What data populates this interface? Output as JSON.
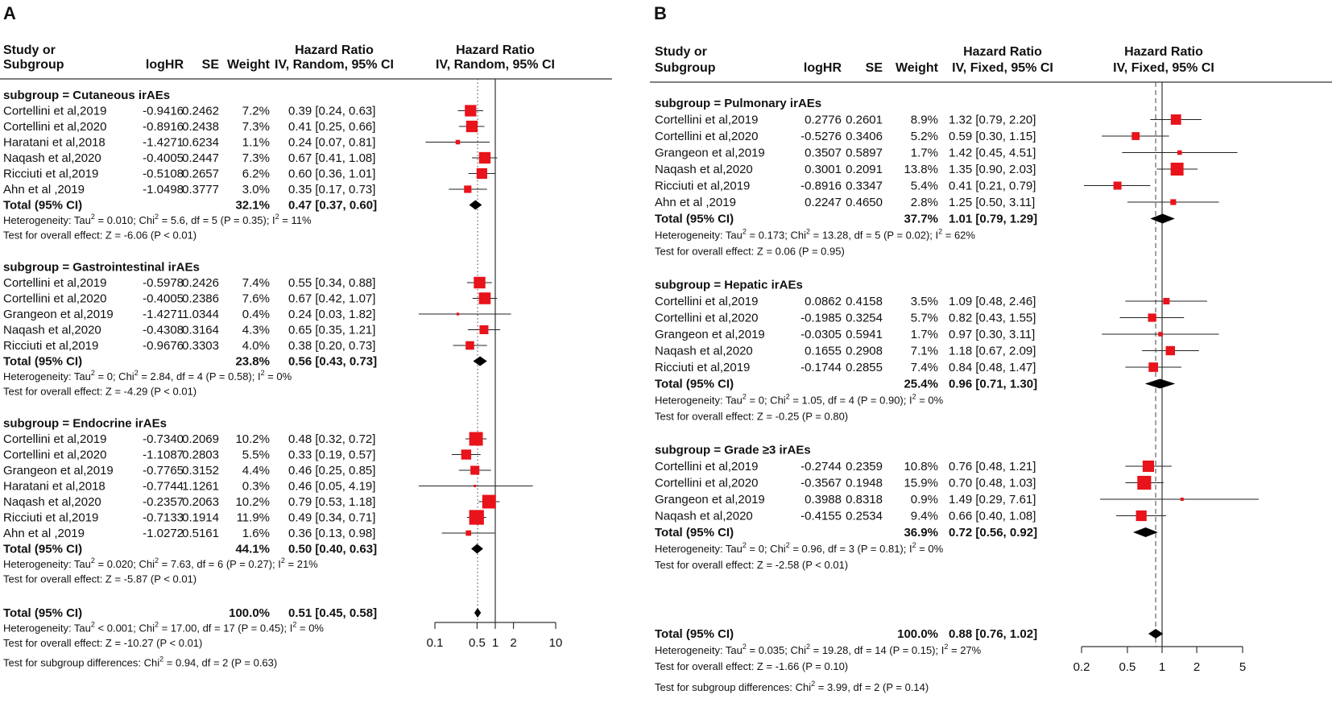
{
  "chart_data": [
    {
      "type": "forest",
      "panel": "A",
      "headers": {
        "study_line1": "Study or",
        "study_line2": "Subgroup",
        "loghr": "logHR",
        "se": "SE",
        "weight": "Weight",
        "ci_line1": "Hazard Ratio",
        "ci_line2": "IV, Random, 95% CI",
        "plot_line1": "Hazard Ratio",
        "plot_line2": "IV, Random, 95% CI"
      },
      "axis": {
        "ticks": [
          0.1,
          0.5,
          1,
          2,
          10
        ],
        "tick_labels": [
          "0.1",
          "0.5",
          "1",
          "2",
          "10"
        ],
        "xlim": [
          0.1,
          10
        ],
        "scale": "log",
        "overall_dotted_line": 0.51
      },
      "subgroups": [
        {
          "title": "subgroup = Cutaneous irAEs",
          "studies": [
            {
              "study": "Cortellini et al,2019",
              "loghr": "-0.9416",
              "se": "0.2462",
              "weight": "7.2%",
              "ci": "0.39 [0.24, 0.63]",
              "hr": 0.39,
              "lo": 0.24,
              "hi": 0.63,
              "w": 7.2
            },
            {
              "study": "Cortellini et al,2020",
              "loghr": "-0.8916",
              "se": "0.2438",
              "weight": "7.3%",
              "ci": "0.41 [0.25, 0.66]",
              "hr": 0.41,
              "lo": 0.25,
              "hi": 0.66,
              "w": 7.3
            },
            {
              "study": "Haratani et al,2018",
              "loghr": "-1.4271",
              "se": "0.6234",
              "weight": "1.1%",
              "ci": "0.24 [0.07, 0.81]",
              "hr": 0.24,
              "lo": 0.07,
              "hi": 0.81,
              "w": 1.1
            },
            {
              "study": "Naqash et al,2020",
              "loghr": "-0.4005",
              "se": "0.2447",
              "weight": "7.3%",
              "ci": "0.67 [0.41, 1.08]",
              "hr": 0.67,
              "lo": 0.41,
              "hi": 1.08,
              "w": 7.3
            },
            {
              "study": "Ricciuti et al,2019",
              "loghr": "-0.5108",
              "se": "0.2657",
              "weight": "6.2%",
              "ci": "0.60 [0.36, 1.01]",
              "hr": 0.6,
              "lo": 0.36,
              "hi": 1.01,
              "w": 6.2
            },
            {
              "study": "Ahn et al ,2019",
              "loghr": "-1.0498",
              "se": "0.3777",
              "weight": "3.0%",
              "ci": "0.35 [0.17, 0.73]",
              "hr": 0.35,
              "lo": 0.17,
              "hi": 0.73,
              "w": 3.0
            }
          ],
          "total": {
            "label": "Total (95% CI)",
            "weight": "32.1%",
            "ci": "0.47 [0.37, 0.60]",
            "hr": 0.47,
            "lo": 0.37,
            "hi": 0.6
          },
          "heterogeneity": {
            "prefix": "Heterogeneity: Tau",
            "mid": " = 0.010; Chi",
            "suffix1": " = 5.6, df = 5 (P = 0.35); I",
            "suffix2": " = 11%"
          },
          "effect": "Test for overall effect: Z = -6.06 (P < 0.01)"
        },
        {
          "title": "subgroup = Gastrointestinal irAEs",
          "studies": [
            {
              "study": "Cortellini et al,2019",
              "loghr": "-0.5978",
              "se": "0.2426",
              "weight": "7.4%",
              "ci": "0.55 [0.34, 0.88]",
              "hr": 0.55,
              "lo": 0.34,
              "hi": 0.88,
              "w": 7.4
            },
            {
              "study": "Cortellini et al,2020",
              "loghr": "-0.4005",
              "se": "0.2386",
              "weight": "7.6%",
              "ci": "0.67 [0.42, 1.07]",
              "hr": 0.67,
              "lo": 0.42,
              "hi": 1.07,
              "w": 7.6
            },
            {
              "study": "Grangeon et al,2019",
              "loghr": "-1.4271",
              "se": "1.0344",
              "weight": "0.4%",
              "ci": "0.24 [0.03, 1.82]",
              "hr": 0.24,
              "lo": 0.03,
              "hi": 1.82,
              "w": 0.4
            },
            {
              "study": "Naqash et al,2020",
              "loghr": "-0.4308",
              "se": "0.3164",
              "weight": "4.3%",
              "ci": "0.65 [0.35, 1.21]",
              "hr": 0.65,
              "lo": 0.35,
              "hi": 1.21,
              "w": 4.3
            },
            {
              "study": "Ricciuti et al,2019",
              "loghr": "-0.9676",
              "se": "0.3303",
              "weight": "4.0%",
              "ci": "0.38 [0.20, 0.73]",
              "hr": 0.38,
              "lo": 0.2,
              "hi": 0.73,
              "w": 4.0
            }
          ],
          "total": {
            "label": "Total (95% CI)",
            "weight": "23.8%",
            "ci": "0.56 [0.43, 0.73]",
            "hr": 0.56,
            "lo": 0.43,
            "hi": 0.73
          },
          "heterogeneity": {
            "prefix": "Heterogeneity: Tau",
            "mid": " = 0; Chi",
            "suffix1": " = 2.84, df = 4 (P = 0.58); I",
            "suffix2": " = 0%"
          },
          "effect": "Test for overall effect: Z = -4.29 (P < 0.01)"
        },
        {
          "title": "subgroup = Endocrine irAEs",
          "studies": [
            {
              "study": "Cortellini et al,2019",
              "loghr": "-0.7340",
              "se": "0.2069",
              "weight": "10.2%",
              "ci": "0.48 [0.32, 0.72]",
              "hr": 0.48,
              "lo": 0.32,
              "hi": 0.72,
              "w": 10.2
            },
            {
              "study": "Cortellini et al,2020",
              "loghr": "-1.1087",
              "se": "0.2803",
              "weight": "5.5%",
              "ci": "0.33 [0.19, 0.57]",
              "hr": 0.33,
              "lo": 0.19,
              "hi": 0.57,
              "w": 5.5
            },
            {
              "study": "Grangeon et al,2019",
              "loghr": "-0.7765",
              "se": "0.3152",
              "weight": "4.4%",
              "ci": "0.46 [0.25, 0.85]",
              "hr": 0.46,
              "lo": 0.25,
              "hi": 0.85,
              "w": 4.4
            },
            {
              "study": "Haratani et al,2018",
              "loghr": "-0.7744",
              "se": "1.1261",
              "weight": "0.3%",
              "ci": "0.46 [0.05, 4.19]",
              "hr": 0.46,
              "lo": 0.05,
              "hi": 4.19,
              "w": 0.3
            },
            {
              "study": "Naqash et al,2020",
              "loghr": "-0.2357",
              "se": "0.2063",
              "weight": "10.2%",
              "ci": "0.79 [0.53, 1.18]",
              "hr": 0.79,
              "lo": 0.53,
              "hi": 1.18,
              "w": 10.2
            },
            {
              "study": "Ricciuti et al,2019",
              "loghr": "-0.7133",
              "se": "0.1914",
              "weight": "11.9%",
              "ci": "0.49 [0.34, 0.71]",
              "hr": 0.49,
              "lo": 0.34,
              "hi": 0.71,
              "w": 11.9
            },
            {
              "study": "Ahn et al ,2019",
              "loghr": "-1.0272",
              "se": "0.5161",
              "weight": "1.6%",
              "ci": "0.36 [0.13, 0.98]",
              "hr": 0.36,
              "lo": 0.13,
              "hi": 0.98,
              "w": 1.6
            }
          ],
          "total": {
            "label": "Total (95% CI)",
            "weight": "44.1%",
            "ci": "0.50 [0.40, 0.63]",
            "hr": 0.5,
            "lo": 0.4,
            "hi": 0.63
          },
          "heterogeneity": {
            "prefix": "Heterogeneity: Tau",
            "mid": " = 0.020; Chi",
            "suffix1": " = 7.63, df = 6 (P = 0.27); I",
            "suffix2": " = 21%"
          },
          "effect": "Test for overall effect: Z = -5.87 (P < 0.01)"
        }
      ],
      "overall": {
        "label": "Total (95% CI)",
        "weight": "100.0%",
        "ci": "0.51 [0.45, 0.58]",
        "hr": 0.51,
        "lo": 0.45,
        "hi": 0.58,
        "heterogeneity": {
          "prefix": "Heterogeneity: Tau",
          "mid": " < 0.001; Chi",
          "suffix1": " = 17.00, df = 17 (P = 0.45); I",
          "suffix2": " = 0%"
        },
        "effect": "Test for overall effect: Z = -10.27 (P < 0.01)",
        "subgroup_diff": {
          "prefix": "Test for subgroup differences: Chi",
          "suffix": " = 0.94, df = 2 (P = 0.63)"
        }
      }
    },
    {
      "type": "forest",
      "panel": "B",
      "headers": {
        "study_line1": "Study or",
        "study_line2": "Subgroup",
        "loghr": "logHR",
        "se": "SE",
        "weight": "Weight",
        "ci_line1": "Hazard Ratio",
        "ci_line2": "IV, Fixed, 95% CI",
        "plot_line1": "Hazard Ratio",
        "plot_line2": "IV, Fixed, 95% CI"
      },
      "axis": {
        "ticks": [
          0.2,
          0.5,
          1,
          2,
          5
        ],
        "tick_labels": [
          "0.2",
          "0.5",
          "1",
          "2",
          "5"
        ],
        "xlim": [
          0.2,
          5
        ],
        "scale": "log",
        "overall_dashed_line": 0.88
      },
      "subgroups": [
        {
          "title": "subgroup = Pulmonary irAEs",
          "studies": [
            {
              "study": "Cortellini et al,2019",
              "loghr": "0.2776",
              "se": "0.2601",
              "weight": "8.9%",
              "ci": "1.32 [0.79, 2.20]",
              "hr": 1.32,
              "lo": 0.79,
              "hi": 2.2,
              "w": 8.9
            },
            {
              "study": "Cortellini et al,2020",
              "loghr": "-0.5276",
              "se": "0.3406",
              "weight": "5.2%",
              "ci": "0.59 [0.30, 1.15]",
              "hr": 0.59,
              "lo": 0.3,
              "hi": 1.15,
              "w": 5.2
            },
            {
              "study": "Grangeon et al,2019",
              "loghr": "0.3507",
              "se": "0.5897",
              "weight": "1.7%",
              "ci": "1.42 [0.45, 4.51]",
              "hr": 1.42,
              "lo": 0.45,
              "hi": 4.51,
              "w": 1.7
            },
            {
              "study": "Naqash et al,2020",
              "loghr": "0.3001",
              "se": "0.2091",
              "weight": "13.8%",
              "ci": "1.35 [0.90, 2.03]",
              "hr": 1.35,
              "lo": 0.9,
              "hi": 2.03,
              "w": 13.8
            },
            {
              "study": "Ricciuti et al,2019",
              "loghr": "-0.8916",
              "se": "0.3347",
              "weight": "5.4%",
              "ci": "0.41 [0.21, 0.79]",
              "hr": 0.41,
              "lo": 0.21,
              "hi": 0.79,
              "w": 5.4
            },
            {
              "study": "Ahn et al ,2019",
              "loghr": "0.2247",
              "se": "0.4650",
              "weight": "2.8%",
              "ci": "1.25 [0.50, 3.11]",
              "hr": 1.25,
              "lo": 0.5,
              "hi": 3.11,
              "w": 2.8
            }
          ],
          "total": {
            "label": "Total (95% CI)",
            "weight": "37.7%",
            "ci": "1.01 [0.79, 1.29]",
            "hr": 1.01,
            "lo": 0.79,
            "hi": 1.29
          },
          "heterogeneity": {
            "prefix": "Heterogeneity: Tau",
            "mid": " = 0.173; Chi",
            "suffix1": " = 13.28, df = 5 (P = 0.02); I",
            "suffix2": " = 62%"
          },
          "effect": "Test for overall effect: Z = 0.06 (P = 0.95)"
        },
        {
          "title": "subgroup = Hepatic irAEs",
          "studies": [
            {
              "study": "Cortellini et al,2019",
              "loghr": "0.0862",
              "se": "0.4158",
              "weight": "3.5%",
              "ci": "1.09 [0.48, 2.46]",
              "hr": 1.09,
              "lo": 0.48,
              "hi": 2.46,
              "w": 3.5
            },
            {
              "study": "Cortellini et al,2020",
              "loghr": "-0.1985",
              "se": "0.3254",
              "weight": "5.7%",
              "ci": "0.82 [0.43, 1.55]",
              "hr": 0.82,
              "lo": 0.43,
              "hi": 1.55,
              "w": 5.7
            },
            {
              "study": "Grangeon et al,2019",
              "loghr": "-0.0305",
              "se": "0.5941",
              "weight": "1.7%",
              "ci": "0.97 [0.30, 3.11]",
              "hr": 0.97,
              "lo": 0.3,
              "hi": 3.11,
              "w": 1.7
            },
            {
              "study": "Naqash et al,2020",
              "loghr": "0.1655",
              "se": "0.2908",
              "weight": "7.1%",
              "ci": "1.18 [0.67, 2.09]",
              "hr": 1.18,
              "lo": 0.67,
              "hi": 2.09,
              "w": 7.1
            },
            {
              "study": "Ricciuti et al,2019",
              "loghr": "-0.1744",
              "se": "0.2855",
              "weight": "7.4%",
              "ci": "0.84 [0.48, 1.47]",
              "hr": 0.84,
              "lo": 0.48,
              "hi": 1.47,
              "w": 7.4
            }
          ],
          "total": {
            "label": "Total (95% CI)",
            "weight": "25.4%",
            "ci": "0.96 [0.71, 1.30]",
            "hr": 0.96,
            "lo": 0.71,
            "hi": 1.3
          },
          "heterogeneity": {
            "prefix": "Heterogeneity: Tau",
            "mid": " = 0; Chi",
            "suffix1": " = 1.05, df = 4 (P = 0.90); I",
            "suffix2": " = 0%"
          },
          "effect": "Test for overall effect: Z = -0.25 (P = 0.80)"
        },
        {
          "title": "subgroup = Grade ≥3 irAEs",
          "studies": [
            {
              "study": "Cortellini et al,2019",
              "loghr": "-0.2744",
              "se": "0.2359",
              "weight": "10.8%",
              "ci": "0.76 [0.48, 1.21]",
              "hr": 0.76,
              "lo": 0.48,
              "hi": 1.21,
              "w": 10.8
            },
            {
              "study": "Cortellini et al,2020",
              "loghr": "-0.3567",
              "se": "0.1948",
              "weight": "15.9%",
              "ci": "0.70 [0.48, 1.03]",
              "hr": 0.7,
              "lo": 0.48,
              "hi": 1.03,
              "w": 15.9
            },
            {
              "study": "Grangeon et al,2019",
              "loghr": "0.3988",
              "se": "0.8318",
              "weight": "0.9%",
              "ci": "1.49 [0.29, 7.61]",
              "hr": 1.49,
              "lo": 0.29,
              "hi": 7.61,
              "w": 0.9
            },
            {
              "study": "Naqash et al,2020",
              "loghr": "-0.4155",
              "se": "0.2534",
              "weight": "9.4%",
              "ci": "0.66 [0.40, 1.08]",
              "hr": 0.66,
              "lo": 0.4,
              "hi": 1.08,
              "w": 9.4
            }
          ],
          "total": {
            "label": "Total (95% CI)",
            "weight": "36.9%",
            "ci": "0.72 [0.56, 0.92]",
            "hr": 0.72,
            "lo": 0.56,
            "hi": 0.92
          },
          "heterogeneity": {
            "prefix": "Heterogeneity: Tau",
            "mid": " = 0; Chi",
            "suffix1": " = 0.96, df = 3 (P = 0.81); I",
            "suffix2": " = 0%"
          },
          "effect": "Test for overall effect: Z = -2.58 (P < 0.01)"
        }
      ],
      "overall": {
        "label": "Total (95% CI)",
        "weight": "100.0%",
        "ci": "0.88 [0.76, 1.02]",
        "hr": 0.88,
        "lo": 0.76,
        "hi": 1.02,
        "heterogeneity": {
          "prefix": "Heterogeneity: Tau",
          "mid": " = 0.035; Chi",
          "suffix1": " = 19.28, df = 14 (P = 0.15); I",
          "suffix2": " = 27%"
        },
        "effect": "Test for overall effect: Z = -1.66 (P = 0.10)",
        "subgroup_diff": {
          "prefix": "Test for subgroup differences: Chi",
          "suffix": " = 3.99, df = 2 (P = 0.14)"
        }
      }
    }
  ],
  "style": {
    "square_color": "#e8131b",
    "line_color": "#222222",
    "diamond_color": "#000000"
  }
}
